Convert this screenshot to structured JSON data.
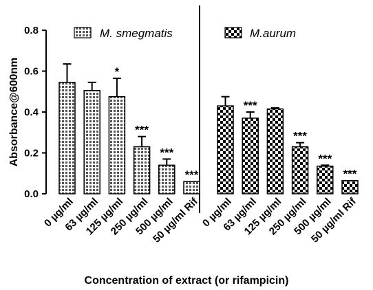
{
  "chart_data": {
    "type": "bar",
    "xlabel": "Concentration of extract (or rifampicin)",
    "ylabel": "Absorbance@600nm",
    "ylim": [
      0,
      0.8
    ],
    "yticks": [
      "0.0",
      "0.2",
      "0.4",
      "0.6",
      "0.8"
    ],
    "grid": false,
    "legend_position": "top",
    "groups": [
      {
        "name": "M. smegmatis",
        "pattern": "grid",
        "categories": [
          "0 µg/ml",
          "63 µg/ml",
          "125 µg/ml",
          "250 µg/ml",
          "500 µg/ml",
          "50 µg/ml Rif"
        ],
        "values": [
          0.545,
          0.505,
          0.475,
          0.23,
          0.14,
          0.06
        ],
        "errors": [
          0.09,
          0.04,
          0.09,
          0.05,
          0.03,
          0.0
        ],
        "significance": [
          "",
          "",
          "*",
          "***",
          "***",
          "***"
        ]
      },
      {
        "name": "M.aurum",
        "pattern": "checker",
        "categories": [
          "0 µg/ml",
          "63 µg/ml",
          "125 µg/ml",
          "250 µg/ml",
          "500 µg/ml",
          "50 µg/ml Rif"
        ],
        "values": [
          0.43,
          0.37,
          0.415,
          0.23,
          0.135,
          0.065
        ],
        "errors": [
          0.045,
          0.03,
          0.005,
          0.02,
          0.005,
          0.0
        ],
        "significance": [
          "",
          "***",
          "",
          "***",
          "***",
          "***"
        ]
      }
    ]
  }
}
